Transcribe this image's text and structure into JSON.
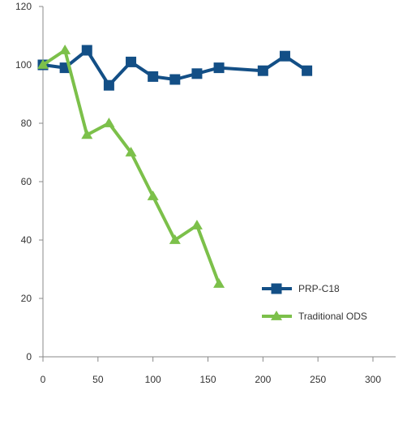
{
  "chart_data": {
    "type": "line",
    "title": "",
    "xlabel": "",
    "ylabel": "",
    "xlim": [
      0,
      300
    ],
    "ylim": [
      0,
      120
    ],
    "x_ticks": [
      "0",
      "50",
      "100",
      "150",
      "200",
      "250",
      "300"
    ],
    "y_ticks": [
      "0",
      "20",
      "40",
      "60",
      "80",
      "100",
      "120"
    ],
    "grid": false,
    "legend_position": "bottom-right",
    "series": [
      {
        "name": "PRP-C18",
        "color": "#134f86",
        "marker": "square",
        "points": [
          [
            0,
            100
          ],
          [
            20,
            99
          ],
          [
            40,
            105
          ],
          [
            60,
            93
          ],
          [
            80,
            101
          ],
          [
            100,
            96
          ],
          [
            120,
            95
          ],
          [
            140,
            97
          ],
          [
            160,
            99
          ],
          [
            200,
            98
          ],
          [
            220,
            103
          ],
          [
            240,
            98
          ]
        ]
      },
      {
        "name": "Traditional ODS",
        "color": "#7cc04a",
        "marker": "triangle",
        "points": [
          [
            0,
            100
          ],
          [
            20,
            105
          ],
          [
            40,
            76
          ],
          [
            60,
            80
          ],
          [
            80,
            70
          ],
          [
            100,
            55
          ],
          [
            120,
            40
          ],
          [
            140,
            45
          ],
          [
            160,
            25
          ]
        ]
      }
    ]
  }
}
